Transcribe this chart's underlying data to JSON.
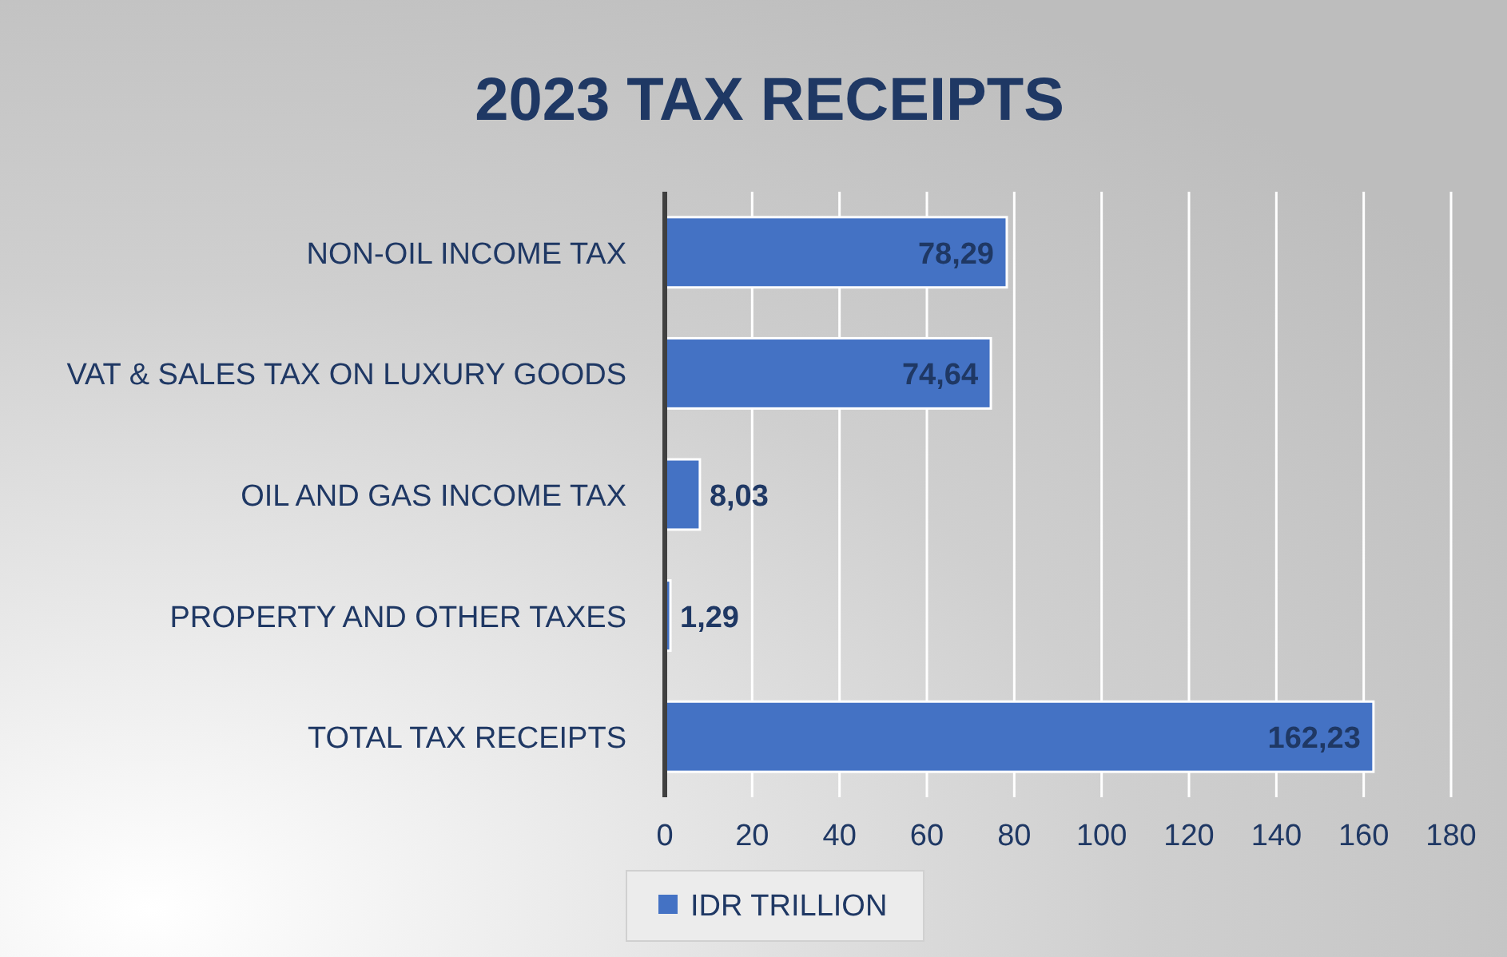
{
  "chart_data": {
    "type": "bar",
    "orientation": "horizontal",
    "title": "2023 TAX RECEIPTS",
    "categories": [
      "NON-OIL INCOME TAX",
      "VAT & SALES TAX ON LUXURY GOODS",
      "OIL AND GAS INCOME TAX",
      "PROPERTY AND OTHER TAXES",
      "TOTAL TAX RECEIPTS"
    ],
    "series": [
      {
        "name": "IDR TRILLION",
        "color": "#4472c4",
        "values": [
          78.29,
          74.64,
          8.03,
          1.29,
          162.23
        ],
        "value_labels": [
          "78,29",
          "74,64",
          "8,03",
          "1,29",
          "162,23"
        ]
      }
    ],
    "xlim": [
      0,
      180
    ],
    "xticks": [
      0,
      20,
      40,
      60,
      80,
      100,
      120,
      140,
      160,
      180
    ],
    "grid": "x",
    "legend": "bottom"
  }
}
